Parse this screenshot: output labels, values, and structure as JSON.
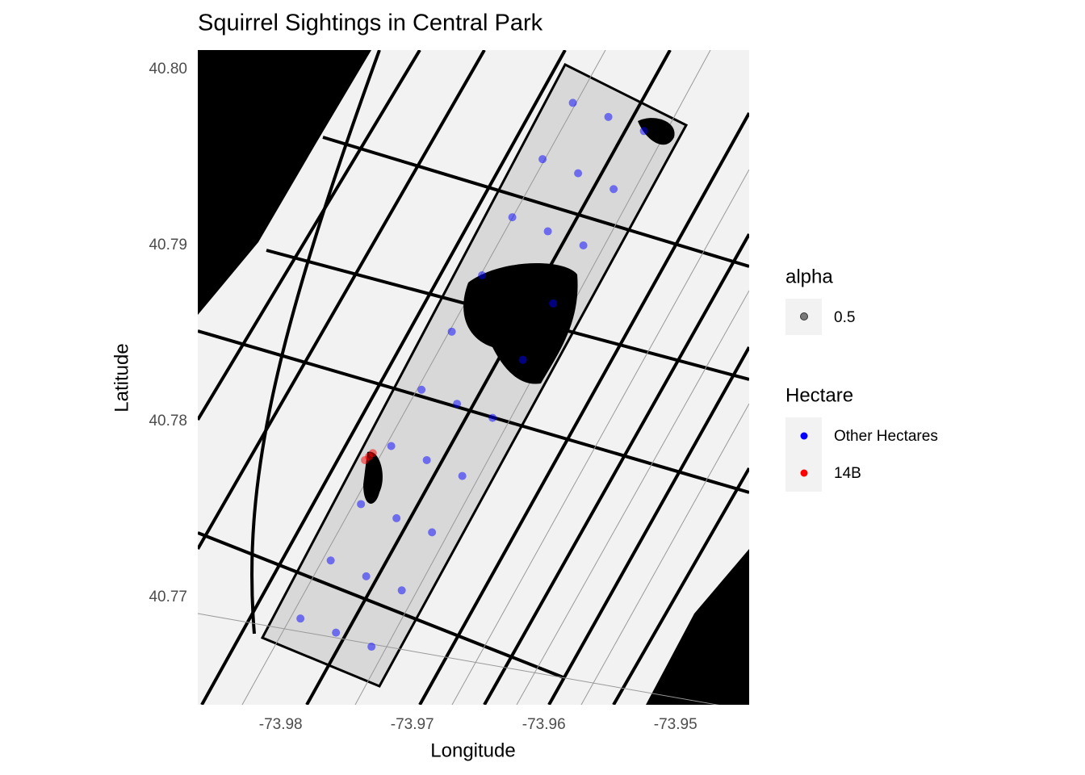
{
  "chart_data": {
    "type": "scatter",
    "title": "Squirrel Sightings in Central Park",
    "x_label": "Longitude",
    "y_label": "Latitude",
    "xlim": [
      -73.9863,
      -73.9444
    ],
    "ylim": [
      40.7639,
      40.8011
    ],
    "xticks": [
      -73.98,
      -73.97,
      -73.96,
      -73.95
    ],
    "yticks": [
      {
        "value": 40.77,
        "label": "40.77"
      },
      {
        "value": 40.78,
        "label": "40.78"
      },
      {
        "value": 40.79,
        "label": "40.79"
      },
      {
        "value": 40.8,
        "label": "40.80"
      }
    ],
    "alpha": 0.5,
    "alpha_legend_title": "alpha",
    "legend_title": "Hectare",
    "series": [
      {
        "name": "Other Hectares",
        "color": "#0000ff",
        "x": [
          -73.9785,
          -73.9758,
          -73.9731,
          -73.9762,
          -73.9735,
          -73.9708,
          -73.9739,
          -73.9712,
          -73.9685,
          -73.9716,
          -73.9689,
          -73.9662,
          -73.9693,
          -73.9666,
          -73.9639,
          -73.967,
          -73.9616,
          -73.9647,
          -73.9593,
          -73.9624,
          -73.9597,
          -73.957,
          -73.9601,
          -73.9574,
          -73.9547,
          -73.9578,
          -73.9551,
          -73.9524
        ],
        "y": [
          40.7688,
          40.768,
          40.7672,
          40.7721,
          40.7712,
          40.7704,
          40.7753,
          40.7745,
          40.7737,
          40.7786,
          40.7778,
          40.7769,
          40.7818,
          40.781,
          40.7802,
          40.7851,
          40.7835,
          40.7883,
          40.7867,
          40.7916,
          40.7908,
          40.79,
          40.7949,
          40.7941,
          40.7932,
          40.7981,
          40.7973,
          40.7965
        ]
      },
      {
        "name": "14B",
        "color": "#ff0000",
        "x": [
          -73.9733,
          -73.973,
          -73.9736
        ],
        "y": [
          40.778,
          40.7782,
          40.7778
        ]
      }
    ]
  }
}
